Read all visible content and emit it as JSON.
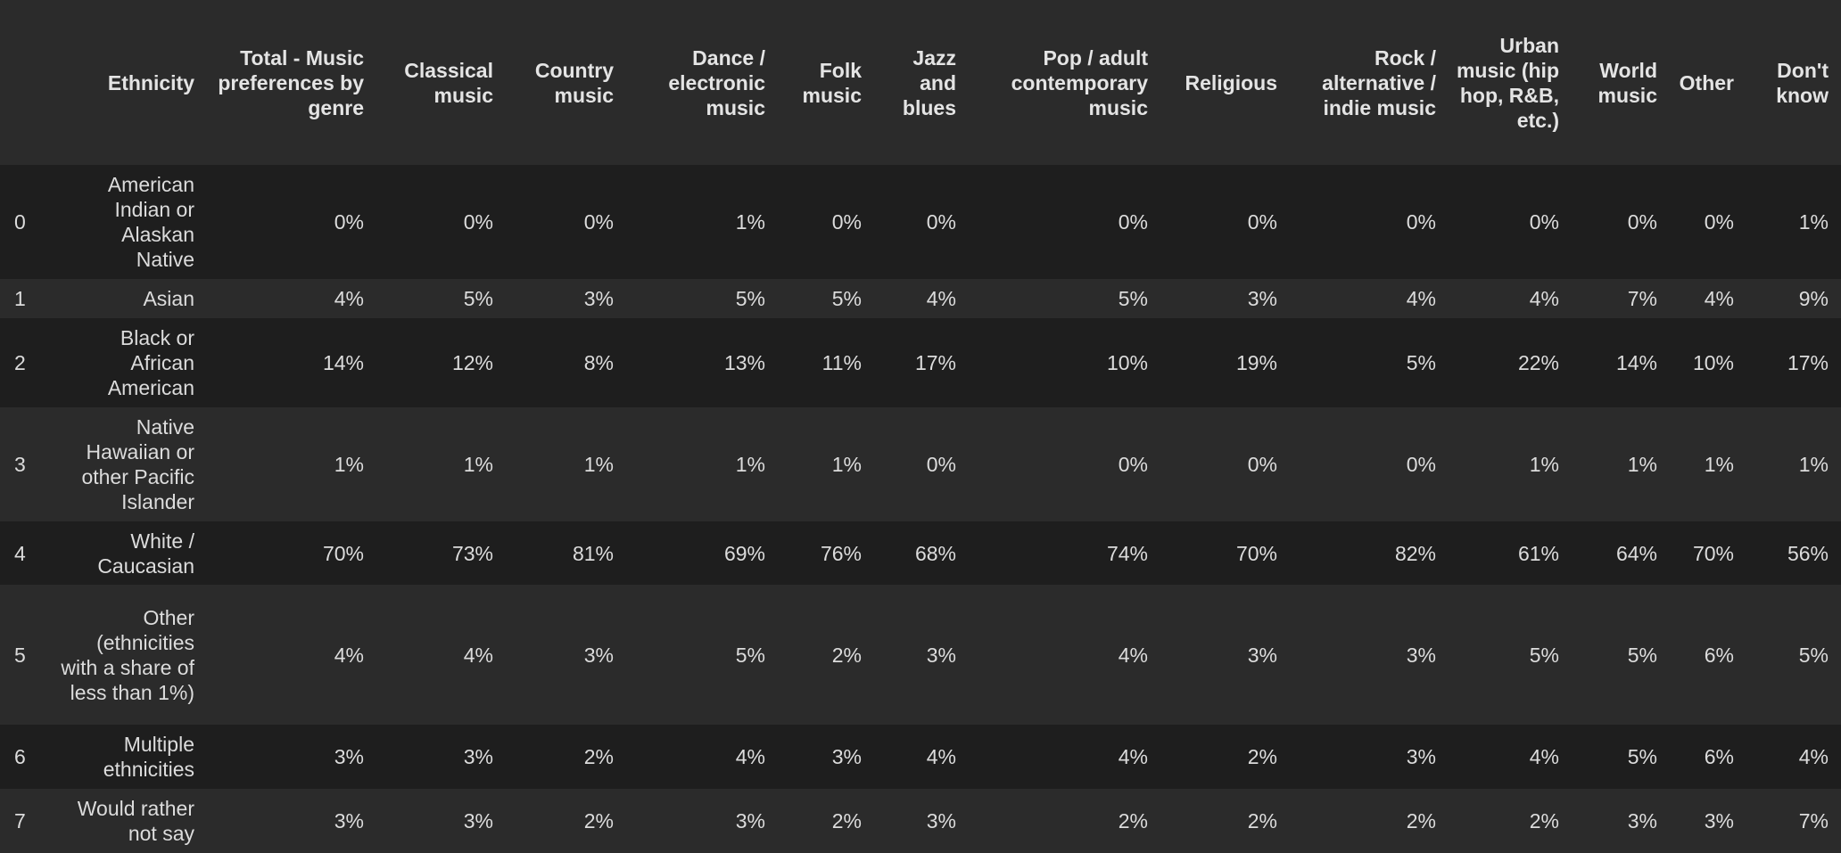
{
  "chart_data": {
    "type": "table",
    "index_header": "",
    "columns": [
      "Ethnicity",
      "Total - Music preferences by genre",
      "Classical music",
      "Country music",
      "Dance / electronic music",
      "Folk music",
      "Jazz and blues",
      "Pop / adult contemporary music",
      "Religious",
      "Rock / alternative / indie music",
      "Urban music (hip hop, R&B, etc.)",
      "World music",
      "Other",
      "Don't know"
    ],
    "rows": [
      {
        "index": "0",
        "cells": [
          "American Indian or Alaskan Native",
          "0%",
          "0%",
          "0%",
          "1%",
          "0%",
          "0%",
          "0%",
          "0%",
          "0%",
          "0%",
          "0%",
          "0%",
          "1%"
        ]
      },
      {
        "index": "1",
        "cells": [
          "Asian",
          "4%",
          "5%",
          "3%",
          "5%",
          "5%",
          "4%",
          "5%",
          "3%",
          "4%",
          "4%",
          "7%",
          "4%",
          "9%"
        ]
      },
      {
        "index": "2",
        "cells": [
          "Black or African American",
          "14%",
          "12%",
          "8%",
          "13%",
          "11%",
          "17%",
          "10%",
          "19%",
          "5%",
          "22%",
          "14%",
          "10%",
          "17%"
        ]
      },
      {
        "index": "3",
        "cells": [
          "Native Hawaiian or other Pacific Islander",
          "1%",
          "1%",
          "1%",
          "1%",
          "1%",
          "0%",
          "0%",
          "0%",
          "0%",
          "1%",
          "1%",
          "1%",
          "1%"
        ]
      },
      {
        "index": "4",
        "cells": [
          "White / Caucasian",
          "70%",
          "73%",
          "81%",
          "69%",
          "76%",
          "68%",
          "74%",
          "70%",
          "82%",
          "61%",
          "64%",
          "70%",
          "56%"
        ]
      },
      {
        "index": "5",
        "cells": [
          "Other (ethnicities with a share of less than 1%)",
          "4%",
          "4%",
          "3%",
          "5%",
          "2%",
          "3%",
          "4%",
          "3%",
          "3%",
          "5%",
          "5%",
          "6%",
          "5%"
        ]
      },
      {
        "index": "6",
        "cells": [
          "Multiple ethnicities",
          "3%",
          "3%",
          "2%",
          "4%",
          "3%",
          "4%",
          "4%",
          "2%",
          "3%",
          "4%",
          "5%",
          "6%",
          "4%"
        ]
      },
      {
        "index": "7",
        "cells": [
          "Would rather not say",
          "3%",
          "3%",
          "2%",
          "3%",
          "2%",
          "3%",
          "2%",
          "2%",
          "2%",
          "2%",
          "3%",
          "3%",
          "7%"
        ]
      }
    ]
  },
  "colors": {
    "background": "#1e1e1e",
    "header_background": "#2b2b2b",
    "row_alt_background": "#2b2b2b",
    "text": "#dcdcdc"
  }
}
